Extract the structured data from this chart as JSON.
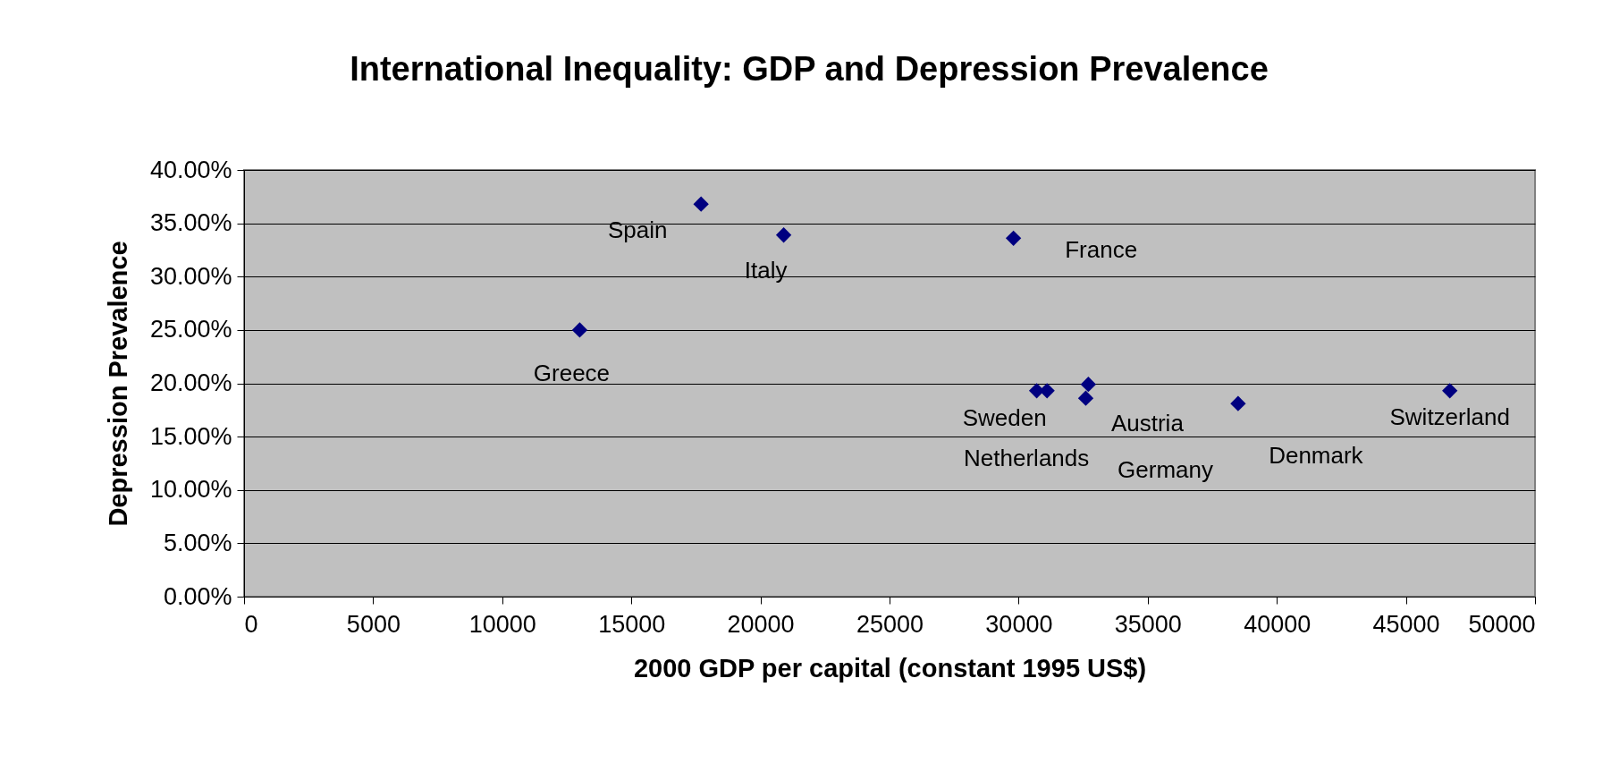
{
  "chart_data": {
    "type": "scatter",
    "title": "International Inequality: GDP and Depression Prevalence",
    "xlabel": "2000 GDP per capital (constant 1995 US$)",
    "ylabel": "Depression Prevalence",
    "x": [
      13000,
      17700,
      20900,
      29800,
      30700,
      31100,
      32700,
      32600,
      38500,
      46700
    ],
    "series": [
      {
        "color": "#000080",
        "values": [
          25.0,
          36.8,
          33.9,
          33.6,
          19.3,
          19.3,
          19.9,
          18.6,
          18.1,
          19.3
        ]
      }
    ],
    "xlim": [
      0,
      50000
    ],
    "xticks": [
      0,
      5000,
      10000,
      15000,
      20000,
      25000,
      30000,
      35000,
      40000,
      45000,
      50000
    ],
    "ylim": [
      0,
      40
    ],
    "yticks": [
      {
        "value": 0,
        "label": "0.00%"
      },
      {
        "value": 5,
        "label": "5.00%"
      },
      {
        "value": 10,
        "label": "10.00%"
      },
      {
        "value": 15,
        "label": "15.00%"
      },
      {
        "value": 20,
        "label": "20.00%"
      },
      {
        "value": 25,
        "label": "25.00%"
      },
      {
        "value": 30,
        "label": "30.00%"
      },
      {
        "value": 35,
        "label": "35.00%"
      },
      {
        "value": 40,
        "label": "40.00%"
      }
    ],
    "grid": "y",
    "marker": "diamond",
    "annotations": [
      {
        "text": "Greece",
        "x": 13000,
        "y": 25.0
      },
      {
        "text": "Spain",
        "x": 17700,
        "y": 36.8
      },
      {
        "text": "Italy",
        "x": 20900,
        "y": 33.9
      },
      {
        "text": "France",
        "x": 29800,
        "y": 33.6
      },
      {
        "text": "Sweden",
        "x": 30700,
        "y": 19.3
      },
      {
        "text": "Netherlands",
        "x": 31100,
        "y": 19.3
      },
      {
        "text": "Austria",
        "x": 32700,
        "y": 19.9
      },
      {
        "text": "Germany",
        "x": 32600,
        "y": 18.6
      },
      {
        "text": "Denmark",
        "x": 38500,
        "y": 18.1
      },
      {
        "text": "Switzerland",
        "x": 46700,
        "y": 19.3
      }
    ]
  }
}
